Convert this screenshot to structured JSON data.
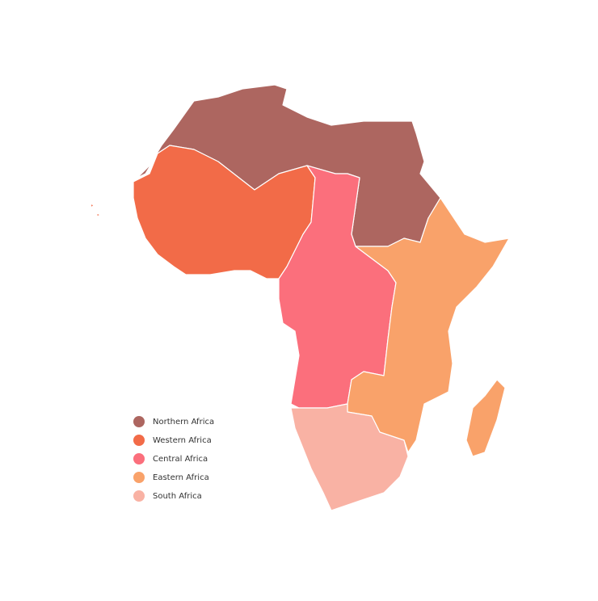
{
  "legend": {
    "items": [
      {
        "label": "Northern Africa",
        "color": "#ad6660"
      },
      {
        "label": "Western Africa",
        "color": "#f26b48"
      },
      {
        "label": "Central Africa",
        "color": "#fb6f7c"
      },
      {
        "label": "Eastern Africa",
        "color": "#f9a26a"
      },
      {
        "label": "South Africa",
        "color": "#f9b2a4"
      }
    ]
  }
}
